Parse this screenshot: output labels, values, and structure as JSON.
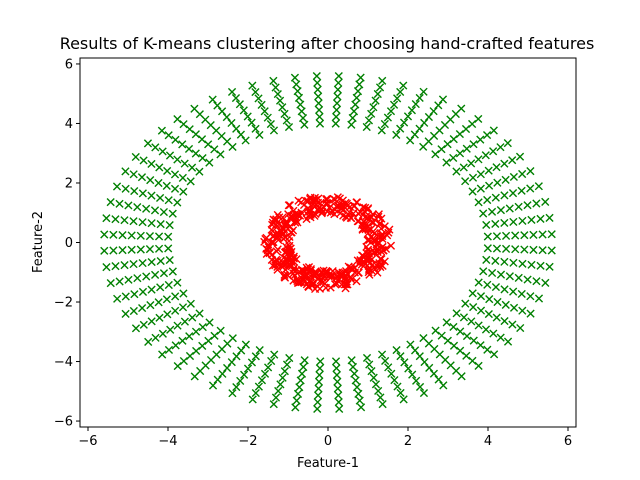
{
  "chart_data": {
    "type": "scatter",
    "title": "Results of K-means clustering after choosing hand-crafted features",
    "xlabel": "Feature-1",
    "ylabel": "Feature-2",
    "xlim": [
      -6.2,
      6.2
    ],
    "ylim": [
      -6.2,
      6.2
    ],
    "xticks": [
      -6,
      -4,
      -2,
      0,
      2,
      4,
      6
    ],
    "yticks": [
      -6,
      -4,
      -2,
      0,
      2,
      4,
      6
    ],
    "xtick_labels": [
      "−6",
      "−4",
      "−2",
      "0",
      "2",
      "4",
      "6"
    ],
    "ytick_labels": [
      "−6",
      "−4",
      "−2",
      "0",
      "2",
      "4",
      "6"
    ],
    "grid": false,
    "legend": "none",
    "marker": "x",
    "series": [
      {
        "color": "#008000",
        "pattern": "annulus-radial-rows",
        "r_range": [
          4.0,
          5.6
        ],
        "n_angles": 64,
        "n_radii": 8
      },
      {
        "color": "#ff0000",
        "pattern": "annulus-random",
        "r_range": [
          0.95,
          1.6
        ],
        "n_points": 420
      }
    ]
  }
}
